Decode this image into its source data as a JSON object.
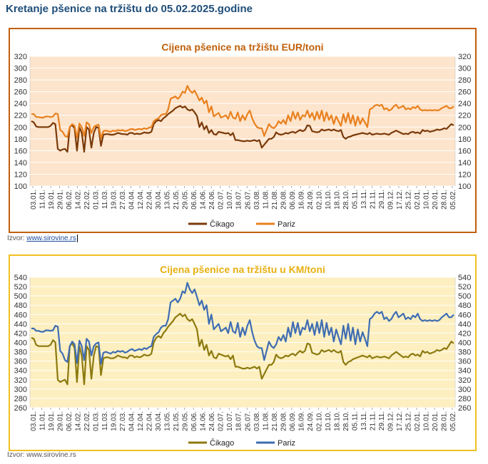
{
  "page_title": "Kretanje pšenice na tržištu do 05.02.2025.godine",
  "charts": [
    {
      "source_label": "Izvor:",
      "source_link": "www.sirovine.rs"
    },
    {
      "source_label": "Izvor:",
      "source_link": "www.sirovine.rs"
    }
  ],
  "chart_data": [
    {
      "type": "line",
      "title": "Cijena pšenice na tržištu EUR/toni",
      "xlabel": "",
      "ylabel": "",
      "ylim": [
        100,
        320
      ],
      "yticks": [
        100,
        120,
        140,
        160,
        180,
        200,
        220,
        240,
        260,
        280,
        300,
        320
      ],
      "y2ticks": [
        100,
        120,
        140,
        160,
        180,
        200,
        220,
        240,
        260,
        280,
        300,
        320
      ],
      "x_tick_labels": [
        "03.01.",
        "11.01.",
        "19.01.",
        "29.01.",
        "06.02.",
        "14.02.",
        "22.02.",
        "01.03.",
        "11.03.",
        "19.03.",
        "27.03.",
        "04.04.",
        "12.04.",
        "22.04.",
        "30.04.",
        "13.05.",
        "21.05.",
        "29.05.",
        "06.06.",
        "14.06.",
        "24.06.",
        "02.07.",
        "10.07.",
        "18.07.",
        "26.07.",
        "03.08.",
        "11.08.",
        "21.08.",
        "29.08.",
        "06.09.",
        "16.09.",
        "24.09.",
        "02.10.",
        "10.10.",
        "18.10.",
        "28.10.",
        "05.11.",
        "13.11.",
        "21.11.",
        "29.11.",
        "09.12.",
        "17.12.",
        "25.12.",
        "02.01.",
        "10.01.",
        "20.01.",
        "28.01.",
        "05.02."
      ],
      "background": "#fde4cc",
      "grid": "horizontal",
      "legend": "bottom",
      "series": [
        {
          "name": "Čikago",
          "color": "#7a3a0a",
          "values": [
            210,
            208,
            201,
            200,
            200,
            200,
            200,
            200,
            202,
            207,
            205,
            163,
            160,
            162,
            163,
            158,
            200,
            203,
            198,
            160,
            200,
            190,
            158,
            200,
            196,
            165,
            190,
            200,
            199,
            168,
            187,
            188,
            188,
            187,
            187,
            188,
            190,
            189,
            188,
            188,
            187,
            190,
            190,
            188,
            189,
            188,
            189,
            191,
            190,
            190,
            192,
            205,
            210,
            212,
            210,
            215,
            218,
            222,
            225,
            228,
            232,
            234,
            236,
            233,
            235,
            230,
            228,
            230,
            225,
            219,
            200,
            208,
            196,
            202,
            190,
            195,
            188,
            187,
            192,
            191,
            190,
            189,
            190,
            186,
            190,
            178,
            178,
            177,
            176,
            176,
            177,
            176,
            177,
            178,
            176,
            178,
            165,
            170,
            175,
            180,
            180,
            183,
            191,
            188,
            187,
            188,
            190,
            189,
            191,
            192,
            190,
            193,
            195,
            193,
            195,
            203,
            202,
            193,
            192,
            191,
            192,
            196,
            194,
            195,
            196,
            194,
            196,
            194,
            193,
            195,
            183,
            180,
            183,
            184,
            186,
            187,
            188,
            189,
            190,
            189,
            188,
            190,
            187,
            188,
            189,
            188,
            188,
            189,
            188,
            187,
            190,
            192,
            194,
            192,
            190,
            188,
            189,
            188,
            191,
            192,
            190,
            191,
            189,
            195,
            193,
            194,
            192,
            193,
            194,
            196,
            195,
            196,
            198,
            197,
            201,
            205,
            203
          ]
        },
        {
          "name": "Pariz",
          "color": "#e8811f",
          "values": [
            222,
            222,
            217,
            217,
            216,
            216,
            218,
            218,
            217,
            218,
            223,
            222,
            195,
            192,
            185,
            183,
            200,
            205,
            202,
            182,
            206,
            200,
            185,
            208,
            205,
            190,
            200,
            203,
            204,
            181,
            193,
            194,
            193,
            192,
            194,
            193,
            195,
            194,
            195,
            193,
            194,
            196,
            197,
            195,
            196,
            197,
            196,
            198,
            197,
            199,
            200,
            210,
            213,
            215,
            220,
            222,
            222,
            230,
            248,
            250,
            252,
            248,
            252,
            260,
            258,
            270,
            262,
            258,
            262,
            254,
            245,
            250,
            240,
            245,
            225,
            235,
            218,
            221,
            224,
            216,
            218,
            220,
            214,
            226,
            216,
            214,
            225,
            210,
            220,
            212,
            222,
            228,
            215,
            206,
            200,
            198,
            198,
            185,
            195,
            205,
            200,
            198,
            202,
            210,
            206,
            212,
            205,
            220,
            210,
            226,
            214,
            225,
            212,
            220,
            218,
            228,
            216,
            224,
            212,
            226,
            214,
            228,
            210,
            225,
            212,
            220,
            205,
            218,
            210,
            202,
            222,
            208,
            224,
            206,
            220,
            202,
            218,
            205,
            215,
            208,
            200,
            230,
            232,
            236,
            238,
            236,
            238,
            230,
            232,
            228,
            230,
            235,
            238,
            232,
            234,
            236,
            230,
            232,
            230,
            234,
            232,
            236,
            230,
            228,
            229,
            228,
            229,
            228,
            229,
            228,
            229,
            232,
            234,
            236,
            232,
            232,
            235
          ]
        }
      ]
    },
    {
      "type": "line",
      "title": "Cijena pšenice na tržištu u KM/toni",
      "xlabel": "",
      "ylabel": "",
      "ylim": [
        260,
        540
      ],
      "yticks": [
        260,
        280,
        300,
        320,
        340,
        360,
        380,
        400,
        420,
        440,
        460,
        480,
        500,
        520,
        540
      ],
      "y2ticks": [
        260,
        280,
        300,
        320,
        340,
        360,
        380,
        400,
        420,
        440,
        460,
        480,
        500,
        520,
        540
      ],
      "x_tick_labels": [
        "03.01.",
        "11.01.",
        "19.01.",
        "29.01.",
        "06.02.",
        "14.02.",
        "22.02.",
        "01.03.",
        "11.03.",
        "19.03.",
        "27.03.",
        "04.04.",
        "12.04.",
        "22.04.",
        "30.04.",
        "13.05.",
        "21.05.",
        "29.05.",
        "06.06.",
        "14.06.",
        "24.06.",
        "02.07.",
        "10.07.",
        "18.07.",
        "26.07.",
        "03.08.",
        "11.08.",
        "21.08.",
        "29.08.",
        "06.09.",
        "16.09.",
        "24.09.",
        "02.10.",
        "10.10.",
        "18.10.",
        "28.10.",
        "05.11.",
        "13.11.",
        "21.11.",
        "29.11.",
        "09.12.",
        "17.12.",
        "25.12.",
        "02.01.",
        "10.01.",
        "20.01.",
        "28.01.",
        "05.02."
      ],
      "background": "#fdefbf",
      "grid": "horizontal",
      "legend": "bottom",
      "series": [
        {
          "name": "Čikago",
          "color": "#8c7a10",
          "values": [
            410,
            408,
            395,
            392,
            392,
            392,
            392,
            392,
            395,
            405,
            400,
            320,
            315,
            318,
            320,
            310,
            392,
            398,
            388,
            315,
            392,
            372,
            310,
            392,
            384,
            322,
            372,
            392,
            390,
            330,
            366,
            368,
            368,
            366,
            366,
            368,
            372,
            370,
            368,
            368,
            366,
            372,
            372,
            368,
            370,
            368,
            370,
            374,
            372,
            372,
            376,
            400,
            410,
            414,
            410,
            420,
            426,
            434,
            440,
            446,
            454,
            458,
            462,
            456,
            460,
            450,
            446,
            450,
            440,
            428,
            392,
            406,
            384,
            395,
            372,
            382,
            368,
            366,
            376,
            374,
            372,
            370,
            372,
            364,
            372,
            348,
            348,
            346,
            344,
            344,
            346,
            344,
            346,
            348,
            344,
            348,
            322,
            332,
            342,
            352,
            352,
            358,
            374,
            368,
            366,
            368,
            372,
            370,
            374,
            376,
            372,
            378,
            382,
            378,
            382,
            398,
            396,
            378,
            376,
            374,
            376,
            384,
            380,
            382,
            384,
            380,
            384,
            380,
            378,
            382,
            358,
            352,
            358,
            360,
            364,
            366,
            368,
            370,
            372,
            370,
            368,
            372,
            366,
            368,
            370,
            368,
            368,
            370,
            368,
            366,
            372,
            376,
            380,
            376,
            372,
            368,
            370,
            368,
            374,
            376,
            372,
            374,
            370,
            382,
            378,
            380,
            376,
            378,
            380,
            384,
            382,
            384,
            388,
            386,
            394,
            402,
            398
          ]
        },
        {
          "name": "Pariz",
          "color": "#3f6db3",
          "values": [
            430,
            430,
            425,
            425,
            423,
            423,
            426,
            426,
            425,
            426,
            436,
            434,
            382,
            376,
            362,
            358,
            392,
            402,
            396,
            356,
            404,
            392,
            362,
            408,
            402,
            372,
            392,
            398,
            400,
            354,
            378,
            380,
            378,
            376,
            380,
            378,
            382,
            380,
            382,
            378,
            380,
            384,
            386,
            382,
            384,
            386,
            384,
            388,
            386,
            390,
            392,
            412,
            418,
            422,
            432,
            436,
            436,
            450,
            486,
            490,
            494,
            486,
            494,
            510,
            506,
            528,
            514,
            506,
            514,
            498,
            480,
            490,
            470,
            480,
            440,
            460,
            428,
            434,
            440,
            424,
            428,
            432,
            420,
            444,
            424,
            420,
            442,
            412,
            432,
            416,
            436,
            448,
            422,
            404,
            392,
            388,
            388,
            362,
            382,
            402,
            392,
            388,
            396,
            412,
            404,
            416,
            402,
            432,
            412,
            444,
            420,
            442,
            416,
            432,
            428,
            448,
            424,
            440,
            416,
            444,
            420,
            448,
            412,
            442,
            416,
            432,
            402,
            428,
            412,
            396,
            436,
            408,
            440,
            404,
            432,
            396,
            428,
            402,
            422,
            408,
            392,
            450,
            454,
            462,
            466,
            462,
            466,
            450,
            454,
            446,
            450,
            460,
            466,
            454,
            458,
            462,
            450,
            454,
            450,
            458,
            454,
            462,
            450,
            446,
            448,
            446,
            448,
            446,
            448,
            446,
            448,
            454,
            458,
            462,
            454,
            454,
            460
          ]
        }
      ]
    }
  ]
}
